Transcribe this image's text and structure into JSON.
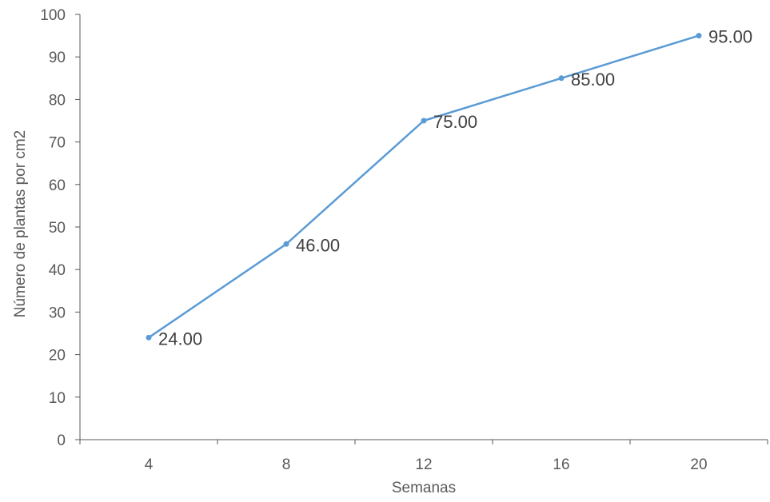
{
  "chart_data": {
    "type": "line",
    "title": "",
    "xlabel": "Semanas",
    "ylabel": "Número de plantas por cm2",
    "categories": [
      "4",
      "8",
      "12",
      "16",
      "20"
    ],
    "series": [
      {
        "values": [
          24,
          46,
          75,
          85,
          95
        ],
        "data_labels": [
          "24.00",
          "46.00",
          "75.00",
          "85.00",
          "95.00"
        ]
      }
    ],
    "ylim": [
      0,
      100
    ],
    "yticks": [
      0,
      10,
      20,
      30,
      40,
      50,
      60,
      70,
      80,
      90,
      100
    ],
    "grid": false,
    "legend": "none",
    "colors": {
      "line": "#5b9bd5",
      "axis": "#595959",
      "tick_text": "#595959",
      "label_text": "#404040"
    }
  }
}
